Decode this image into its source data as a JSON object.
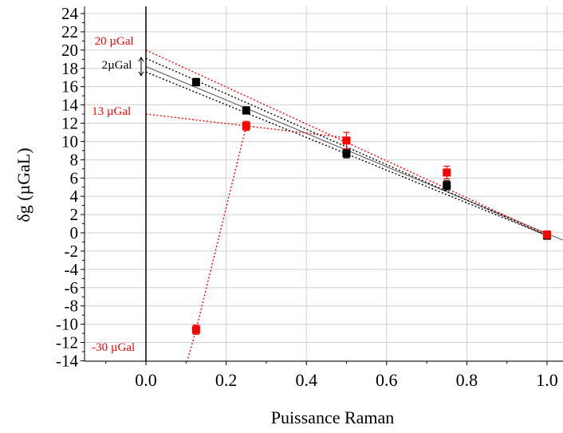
{
  "chart_data": {
    "type": "scatter",
    "title": "",
    "xlabel": "Puissance Raman",
    "ylabel": "δg (µGaL)",
    "xlim": [
      -0.15,
      1.04
    ],
    "ylim": [
      -14,
      25
    ],
    "x_ticks": [
      0.0,
      0.2,
      0.4,
      0.6,
      0.8,
      1.0
    ],
    "x_tick_labels": [
      "0.0",
      "0.2",
      "0.4",
      "0.6",
      "0.8",
      "1.0"
    ],
    "y_ticks": [
      24,
      22,
      20,
      18,
      16,
      14,
      12,
      10,
      8,
      6,
      4,
      2,
      0,
      -2,
      -4,
      -6,
      -8,
      -10,
      -12,
      -14
    ],
    "y_tick_labels": [
      "24",
      "22",
      "20",
      "18",
      "16",
      "14",
      "12",
      "10",
      "8",
      "6",
      "4",
      "2",
      "0",
      "-2",
      "-4",
      "-6",
      "-8",
      "-10",
      "-12",
      "-14"
    ],
    "grid": true,
    "colors": {
      "black_series": "#000000",
      "red_series": "#ff0000",
      "grid": "#d0d0d0",
      "fit": "#555555"
    },
    "series": [
      {
        "color": "black",
        "points": [
          {
            "x": 0.125,
            "y": 16.5,
            "err": 0.4
          },
          {
            "x": 0.25,
            "y": 13.4,
            "err": 0.4
          },
          {
            "x": 0.5,
            "y": 8.7,
            "err": 0.5
          },
          {
            "x": 0.75,
            "y": 5.2,
            "err": 0.5
          },
          {
            "x": 1.0,
            "y": -0.3,
            "err": 0.4
          }
        ]
      },
      {
        "color": "red",
        "points": [
          {
            "x": 0.125,
            "y": -10.6,
            "err": 0.5
          },
          {
            "x": 0.25,
            "y": 11.7,
            "err": 0.5
          },
          {
            "x": 0.5,
            "y": 10.1,
            "err": 0.9
          },
          {
            "x": 0.75,
            "y": 6.6,
            "err": 0.7
          },
          {
            "x": 1.0,
            "y": -0.2,
            "err": 0.4
          }
        ]
      }
    ],
    "fit_lines": [
      {
        "color": "gray",
        "style": "solid",
        "x": [
          0.0,
          1.04
        ],
        "y": [
          18.2,
          -0.8
        ]
      },
      {
        "color": "black",
        "style": "dotted",
        "x": [
          0.0,
          1.0
        ],
        "y": [
          19.1,
          -0.3
        ]
      },
      {
        "color": "black",
        "style": "dotted",
        "x": [
          0.0,
          1.0
        ],
        "y": [
          17.6,
          -0.3
        ]
      },
      {
        "color": "red",
        "style": "dotted",
        "x": [
          0.0,
          1.0
        ],
        "y": [
          20.0,
          -0.2
        ]
      },
      {
        "color": "red",
        "style": "dotted",
        "x": [
          0.0,
          0.25,
          0.5
        ],
        "y": [
          13.0,
          11.7,
          10.4
        ]
      },
      {
        "color": "red",
        "style": "dotted",
        "x": [
          0.1,
          0.125,
          0.25
        ],
        "y": [
          -14.5,
          -10.6,
          11.7
        ]
      }
    ],
    "annotations": [
      {
        "text": "20 µGal",
        "color": "red",
        "x": -0.128,
        "y": 20.6
      },
      {
        "text": "2µGal",
        "color": "black",
        "x": -0.11,
        "y": 18.0
      },
      {
        "text": "13 µGal",
        "color": "red",
        "x": -0.135,
        "y": 12.9
      },
      {
        "text": "-30 µGal",
        "color": "red",
        "x": -0.135,
        "y": -12.9
      }
    ],
    "bracket": {
      "x": -0.012,
      "y1": 19.2,
      "y2": 17.2
    }
  }
}
